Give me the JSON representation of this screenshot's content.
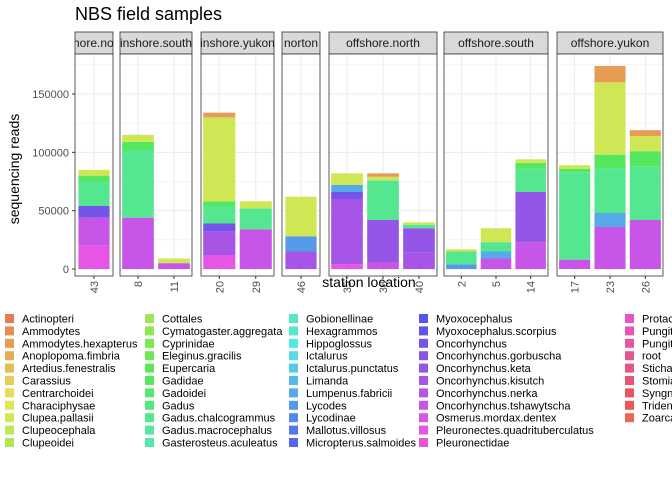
{
  "chart_data": {
    "type": "bar",
    "title": "NBS field samples",
    "xlabel": "station location",
    "ylabel": "sequencing reads",
    "ylim": [
      0,
      185000
    ],
    "y_ticks": [
      0,
      50000,
      100000,
      150000
    ],
    "y_tick_labels": [
      "0",
      "50000",
      "100000",
      "150000"
    ],
    "grid": true,
    "legend_position": "bottom",
    "panels": [
      {
        "name": "inshore.nome",
        "strip_label": "inshore.nome",
        "categories": [
          "43"
        ],
        "totals": [
          85000
        ]
      },
      {
        "name": "inshore.south",
        "strip_label": "inshore.south",
        "categories": [
          "8",
          "11"
        ],
        "totals": [
          115000,
          9000
        ]
      },
      {
        "name": "inshore.yukon",
        "strip_label": "inshore.yukon",
        "categories": [
          "20",
          "29"
        ],
        "totals": [
          134000,
          58000
        ]
      },
      {
        "name": "norton",
        "strip_label": "norton",
        "categories": [
          "46"
        ],
        "totals": [
          62000
        ]
      },
      {
        "name": "offshore.north",
        "strip_label": "offshore.north",
        "categories": [
          "35",
          "38",
          "40"
        ],
        "totals": [
          82000,
          82000,
          40000
        ]
      },
      {
        "name": "offshore.south",
        "strip_label": "offshore.south",
        "categories": [
          "2",
          "5",
          "14"
        ],
        "totals": [
          17000,
          35000,
          94000
        ]
      },
      {
        "name": "offshore.yukon",
        "strip_label": "offshore.yukon",
        "categories": [
          "17",
          "23",
          "26"
        ],
        "totals": [
          89000,
          174000,
          119000
        ]
      }
    ],
    "stacks": {
      "43": [
        [
          "Pleuronectes.quadrituberculatus",
          20000
        ],
        [
          "Oncorhynchus.tshawytscha",
          24000
        ],
        [
          "Oncorhynchus",
          10000
        ],
        [
          "Gadus.chalcogrammus",
          21000
        ],
        [
          "Gadidae",
          5000
        ],
        [
          "Clupea.pallasii",
          5000
        ]
      ],
      "8": [
        [
          "Oncorhynchus.tshawytscha",
          44000
        ],
        [
          "Gadus.chalcogrammus",
          58000
        ],
        [
          "Gadidae",
          7000
        ],
        [
          "Clupea.pallasii",
          6000
        ]
      ],
      "11": [
        [
          "Oncorhynchus.tshawytscha",
          5000
        ],
        [
          "Clupea.pallasii",
          4000
        ]
      ],
      "20": [
        [
          "Pleuronectes.quadrituberculatus",
          12000
        ],
        [
          "Oncorhynchus.kisutch",
          20000
        ],
        [
          "Oncorhynchus",
          7000
        ],
        [
          "Gadus.chalcogrammus",
          15000
        ],
        [
          "Gadidae",
          4000
        ],
        [
          "Clupea.pallasii",
          72000
        ],
        [
          "Ammodytes.hexapterus",
          4000
        ]
      ],
      "29": [
        [
          "Oncorhynchus.tshawytscha",
          34000
        ],
        [
          "Gadus.chalcogrammus",
          18000
        ],
        [
          "Clupea.pallasii",
          6000
        ]
      ],
      "46": [
        [
          "Oncorhynchus.kisutch",
          15000
        ],
        [
          "Lycodes",
          13000
        ],
        [
          "Clupea.pallasii",
          34000
        ]
      ],
      "35": [
        [
          "Pleuronectes.quadrituberculatus",
          4000
        ],
        [
          "Oncorhynchus.kisutch",
          56000
        ],
        [
          "Oncorhynchus",
          6000
        ],
        [
          "Lumpenus.fabricii",
          6000
        ],
        [
          "Clupea.pallasii",
          10000
        ]
      ],
      "38": [
        [
          "Oncorhynchus.tshawytscha",
          6000
        ],
        [
          "Oncorhynchus.keta",
          36000
        ],
        [
          "Gadus.chalcogrammus",
          34000
        ],
        [
          "Clupea.pallasii",
          3000
        ],
        [
          "Ammodytes.hexapterus",
          3000
        ]
      ],
      "40": [
        [
          "Oncorhynchus.kisutch",
          14000
        ],
        [
          "Oncorhynchus.keta",
          21000
        ],
        [
          "Gadus.chalcogrammus",
          3000
        ],
        [
          "Clupea.pallasii",
          2000
        ]
      ],
      "2": [
        [
          "Lycodes",
          4000
        ],
        [
          "Gadus.chalcogrammus",
          11000
        ],
        [
          "Clupea.pallasii",
          2000
        ]
      ],
      "5": [
        [
          "Oncorhynchus.tshawytscha",
          9000
        ],
        [
          "Lumpenus.fabricii",
          6000
        ],
        [
          "Gadus.chalcogrammus",
          8000
        ],
        [
          "Clupea.pallasii",
          12000
        ]
      ],
      "14": [
        [
          "Oncorhynchus.tshawytscha",
          23000
        ],
        [
          "Oncorhynchus.keta",
          43000
        ],
        [
          "Gadus.chalcogrammus",
          20000
        ],
        [
          "Gadidae",
          5000
        ],
        [
          "Clupea.pallasii",
          3000
        ]
      ],
      "17": [
        [
          "Oncorhynchus.tshawytscha",
          8000
        ],
        [
          "Gadus.chalcogrammus",
          75000
        ],
        [
          "Gadidae",
          3000
        ],
        [
          "Clupea.pallasii",
          3000
        ]
      ],
      "23": [
        [
          "Oncorhynchus.tshawytscha",
          36000
        ],
        [
          "Lumpenus.fabricii",
          12000
        ],
        [
          "Gadus.chalcogrammus",
          38000
        ],
        [
          "Gadidae",
          12000
        ],
        [
          "Clupea.pallasii",
          62000
        ],
        [
          "Ammodytes.hexapterus",
          14000
        ]
      ],
      "26": [
        [
          "Oncorhynchus.tshawytscha",
          42000
        ],
        [
          "Gadus.chalcogrammus",
          46000
        ],
        [
          "Gadidae",
          13000
        ],
        [
          "Clupea.pallasii",
          13000
        ],
        [
          "Ammodytes.hexapterus",
          5000
        ]
      ]
    },
    "legend": [
      "Actinopteri",
      "Ammodytes",
      "Ammodytes.hexapterus",
      "Anoplopoma.fimbria",
      "Artedius.fenestralis",
      "Carassius",
      "Centrarchoidei",
      "Characiphysae",
      "Clupea.pallasii",
      "Clupeocephala",
      "Clupeoidei",
      "Cottales",
      "Cymatogaster.aggregata",
      "Cyprinidae",
      "Eleginus.gracilis",
      "Eupercaria",
      "Gadidae",
      "Gadoidei",
      "Gadus",
      "Gadus.chalcogrammus",
      "Gadus.macrocephalus",
      "Gasterosteus.aculeatus",
      "Gobionellinae",
      "Hexagrammos",
      "Hippoglossus",
      "Ictalurus",
      "Ictalurus.punctatus",
      "Limanda",
      "Lumpenus.fabricii",
      "Lycodes",
      "Lycodinae",
      "Mallotus.villosus",
      "Micropterus.salmoides",
      "Myoxocephalus",
      "Myoxocephalus.scorpius",
      "Oncorhynchus",
      "Oncorhynchus.gorbuscha",
      "Oncorhynchus.keta",
      "Oncorhynchus.kisutch",
      "Oncorhynchus.nerka",
      "Oncorhynchus.tshawytscha",
      "Osmerus.mordax.dentex",
      "Pleuronectes.quadrituberculatus",
      "Pleuronectidae",
      "Protacanthopterygii",
      "Pungitius",
      "Pungitius.sp",
      "root",
      "Stichaeidae",
      "Stomiatii",
      "Syngnathus",
      "Tridentiger",
      "Zoarcales"
    ]
  }
}
